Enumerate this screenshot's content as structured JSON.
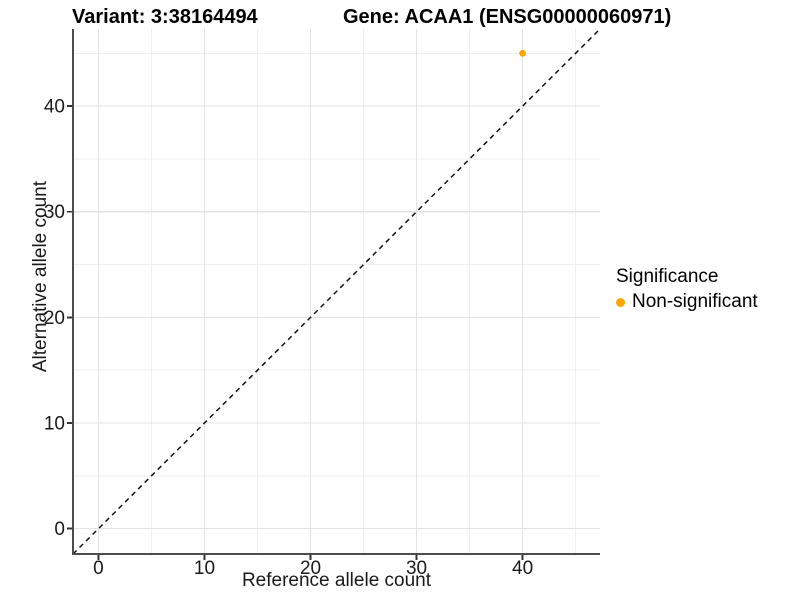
{
  "title": {
    "variant": "Variant: 3:38164494",
    "gene": "Gene: ACAA1 (ENSG00000060971)"
  },
  "chart_data": {
    "type": "scatter",
    "title": "Variant: 3:38164494 — Gene: ACAA1 (ENSG00000060971)",
    "xlabel": "Reference allele count",
    "ylabel": "Alternative allele count",
    "xlim": [
      -2.4,
      47.3
    ],
    "ylim": [
      -2.4,
      47.3
    ],
    "x_ticks": [
      0,
      10,
      20,
      30,
      40
    ],
    "y_ticks": [
      0,
      10,
      20,
      30,
      40
    ],
    "x_minor": [
      5,
      15,
      25,
      35,
      45
    ],
    "y_minor": [
      5,
      15,
      25,
      35,
      45
    ],
    "grid": "major+minor",
    "series": [
      {
        "name": "Non-significant",
        "color": "#FFA500",
        "points": [
          {
            "x": 40,
            "y": 45
          }
        ]
      }
    ],
    "reference_line": {
      "type": "abline",
      "slope": 1,
      "intercept": 0,
      "style": "dashed",
      "color": "#111111"
    },
    "legend": {
      "title": "Significance",
      "position": "right",
      "entries": [
        {
          "label": "Non-significant",
          "color": "#FFA500"
        }
      ]
    }
  },
  "colors": {
    "point": "#FFA500",
    "grid_major": "#E3E3E3",
    "grid_minor": "#EFEFEF",
    "axis_line": "#4D4D4D",
    "tick": "#333333",
    "text": "#1A1A1A",
    "dashed_line": "#111111",
    "background": "#FFFFFF"
  }
}
